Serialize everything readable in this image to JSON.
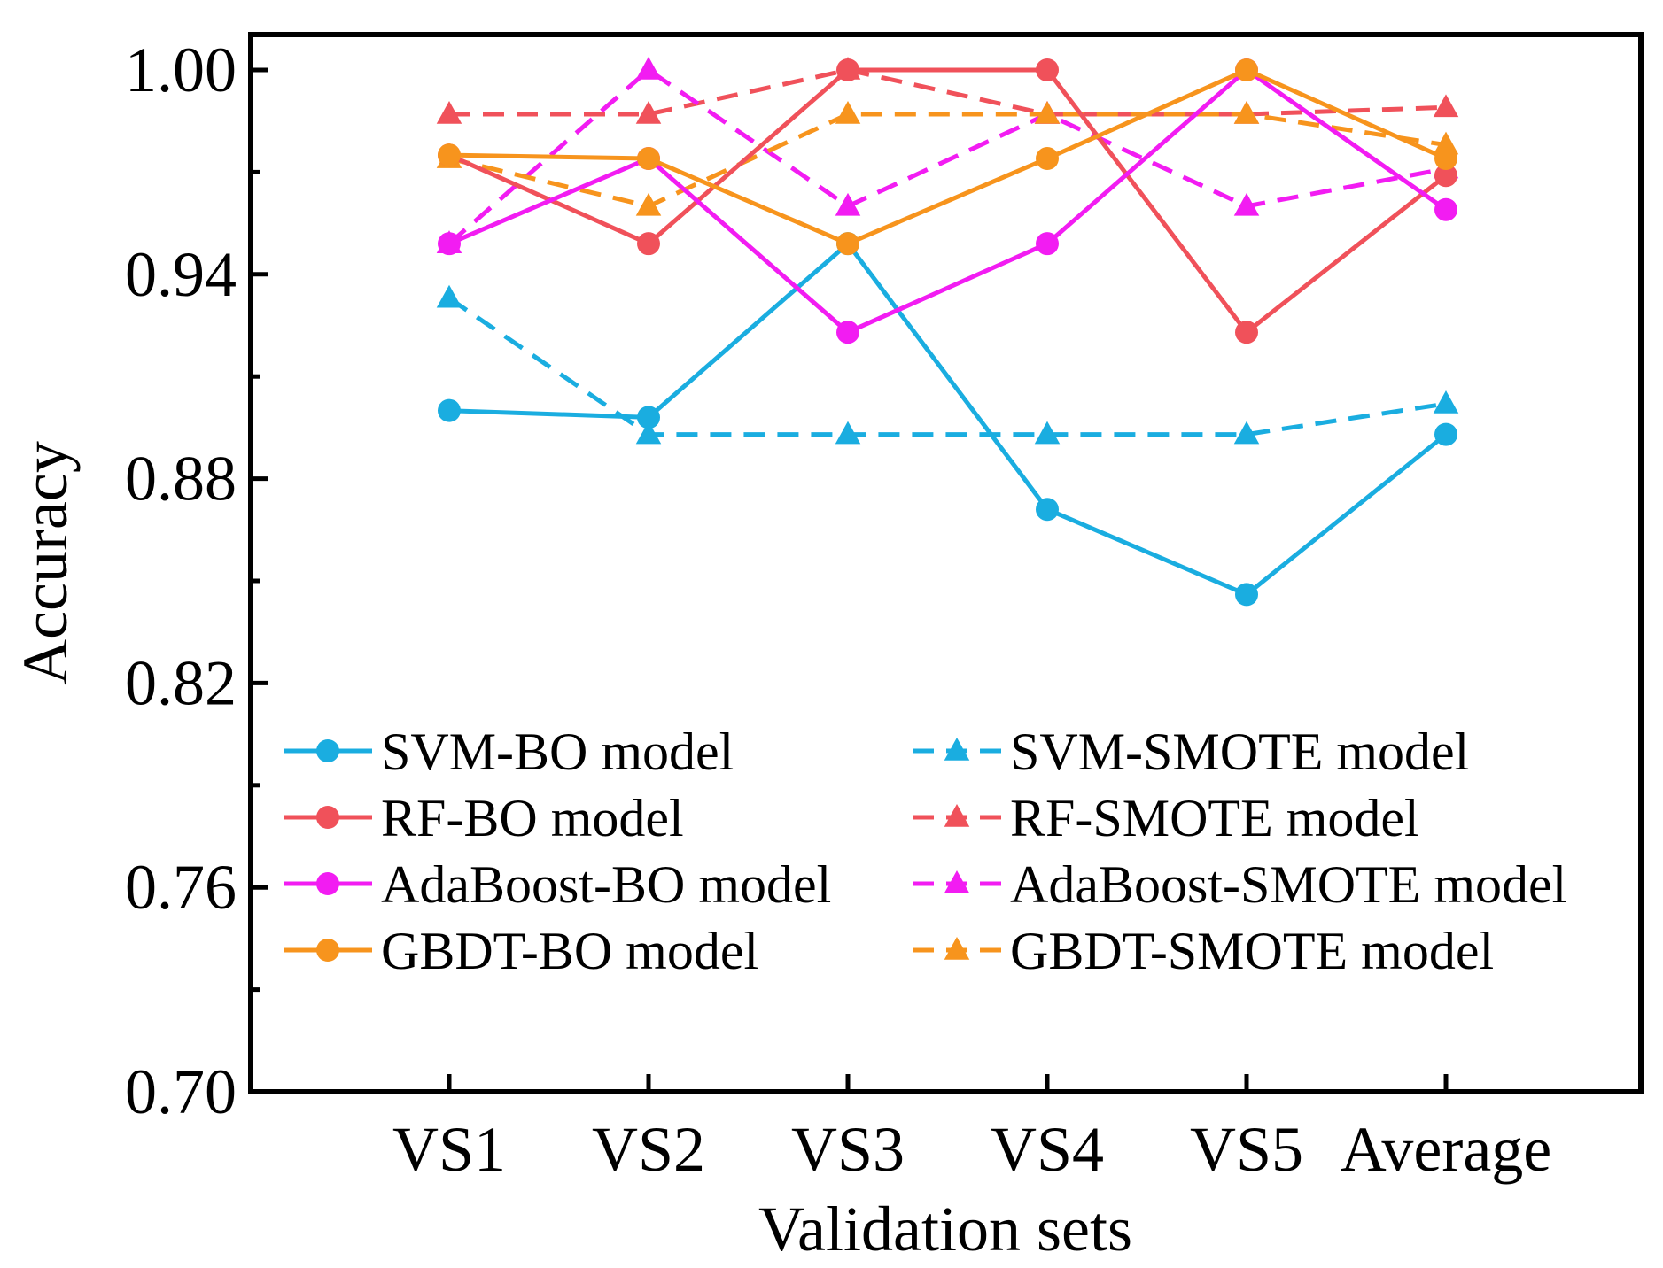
{
  "chart_data": {
    "type": "line",
    "title": "",
    "xlabel": "Validation sets",
    "ylabel": "Accuracy",
    "categories": [
      "VS1",
      "VS2",
      "VS3",
      "VS4",
      "VS5",
      "Average"
    ],
    "ylim": [
      0.7,
      1.0
    ],
    "yticks": [
      0.7,
      0.76,
      0.82,
      0.88,
      0.94,
      1.0
    ],
    "ytick_labels": [
      "0.70",
      "0.76",
      "0.82",
      "0.88",
      "0.94",
      "1.00"
    ],
    "legend_position": "lower-center",
    "series": [
      {
        "name": "SVM-BO model",
        "color": "#1AADE0",
        "dash": "solid",
        "marker": "circle",
        "values": [
          0.9,
          0.898,
          0.949,
          0.871,
          0.846,
          0.893
        ]
      },
      {
        "name": "SVM-SMOTE model",
        "color": "#1AADE0",
        "dash": "dashed",
        "marker": "triangle",
        "values": [
          0.933,
          0.893,
          0.893,
          0.893,
          0.893,
          0.902
        ]
      },
      {
        "name": "RF-BO model",
        "color": "#F0515A",
        "dash": "solid",
        "marker": "circle",
        "values": [
          0.975,
          0.949,
          1.0,
          1.0,
          0.923,
          0.969
        ]
      },
      {
        "name": "RF-SMOTE model",
        "color": "#F0515A",
        "dash": "dashed",
        "marker": "triangle",
        "values": [
          0.987,
          0.987,
          1.0,
          0.987,
          0.987,
          0.989
        ]
      },
      {
        "name": "AdaBoost-BO model",
        "color": "#F21CF2",
        "dash": "solid",
        "marker": "circle",
        "values": [
          0.949,
          0.974,
          0.923,
          0.949,
          1.0,
          0.959
        ]
      },
      {
        "name": "AdaBoost-SMOTE model",
        "color": "#F21CF2",
        "dash": "dashed",
        "marker": "triangle",
        "values": [
          0.949,
          1.0,
          0.96,
          0.987,
          0.96,
          0.971
        ]
      },
      {
        "name": "GBDT-BO model",
        "color": "#F7941D",
        "dash": "solid",
        "marker": "circle",
        "values": [
          0.975,
          0.974,
          0.949,
          0.974,
          1.0,
          0.974
        ]
      },
      {
        "name": "GBDT-SMOTE model",
        "color": "#F7941D",
        "dash": "dashed",
        "marker": "triangle",
        "values": [
          0.974,
          0.96,
          0.987,
          0.987,
          0.987,
          0.978
        ]
      }
    ]
  }
}
